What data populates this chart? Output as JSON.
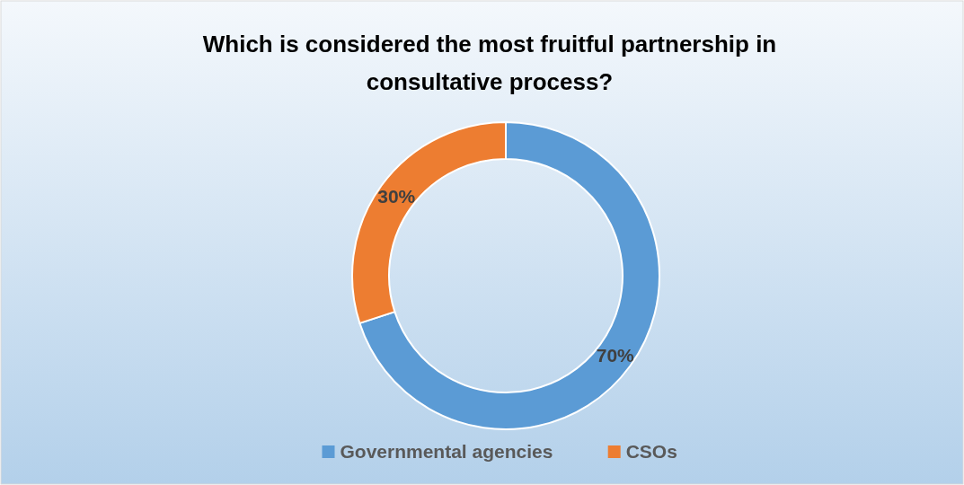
{
  "chart_data": {
    "type": "donut",
    "title": "Which is considered the most fruitful partnership in consultative process?",
    "categories": [
      "Governmental agencies",
      "CSOs"
    ],
    "values": [
      70,
      30
    ],
    "colors": [
      "#5b9bd5",
      "#ed7d31"
    ],
    "value_labels": [
      "70%",
      "30%"
    ],
    "legend": "bottom"
  }
}
